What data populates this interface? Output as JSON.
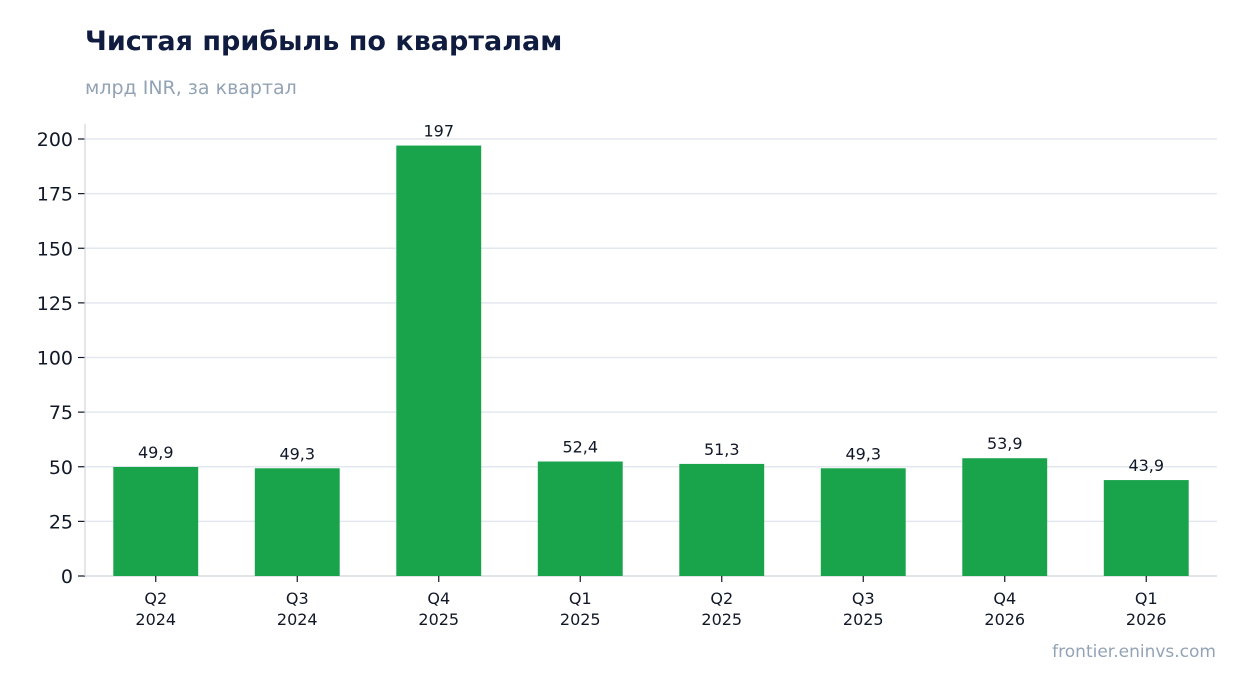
{
  "chart_data": {
    "type": "bar",
    "title": "Чистая прибыль по кварталам",
    "subtitle": "млрд INR, за квартал",
    "xlabel": "",
    "ylabel": "",
    "ylim": [
      0,
      207
    ],
    "yticks": [
      0,
      25,
      50,
      75,
      100,
      125,
      150,
      175,
      200
    ],
    "grid": true,
    "categories": [
      [
        "Q2",
        "2024"
      ],
      [
        "Q3",
        "2024"
      ],
      [
        "Q4",
        "2025"
      ],
      [
        "Q1",
        "2025"
      ],
      [
        "Q2",
        "2025"
      ],
      [
        "Q3",
        "2025"
      ],
      [
        "Q4",
        "2026"
      ],
      [
        "Q1",
        "2026"
      ]
    ],
    "values": [
      49.9,
      49.3,
      197,
      52.4,
      51.3,
      49.3,
      53.9,
      43.9
    ],
    "value_labels": [
      "49,9",
      "49,3",
      "197",
      "52,4",
      "51,3",
      "49,3",
      "53,9",
      "43,9"
    ],
    "colors": {
      "bar": "#19a34a",
      "grid": "#e3e8ef",
      "axis": "#d1d5db",
      "text": "#111827"
    }
  },
  "source": "frontier.eninvs.com"
}
